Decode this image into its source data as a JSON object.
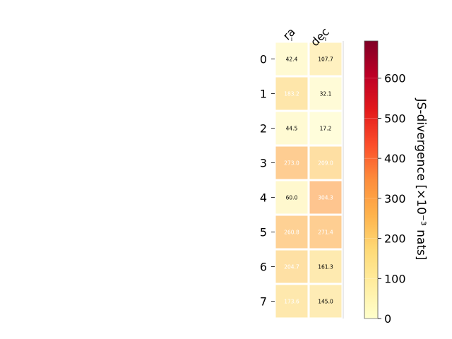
{
  "chart_data": {
    "type": "heatmap",
    "columns": [
      "ra",
      "dec"
    ],
    "rows": [
      "0",
      "1",
      "2",
      "3",
      "4",
      "5",
      "6",
      "7"
    ],
    "values": [
      [
        42.4,
        107.7
      ],
      [
        183.2,
        32.1
      ],
      [
        44.5,
        17.2
      ],
      [
        273.0,
        209.0
      ],
      [
        60.0,
        304.3
      ],
      [
        260.8,
        271.4
      ],
      [
        204.7,
        161.3
      ],
      [
        173.6,
        145.0
      ]
    ],
    "cell_labels": [
      [
        "42.4",
        "107.7"
      ],
      [
        "183.2",
        "32.1"
      ],
      [
        "44.5",
        "17.2"
      ],
      [
        "273.0",
        "209.0"
      ],
      [
        "60.0",
        "304.3"
      ],
      [
        "260.8",
        "271.4"
      ],
      [
        "204.7",
        "161.3"
      ],
      [
        "173.6",
        "145.0"
      ]
    ],
    "colormap": "YlOrRd",
    "colorbar": {
      "label": "JS-divergence [×10⁻³ nats]",
      "range": [
        0,
        693
      ],
      "ticks": [
        0,
        100,
        200,
        300,
        400,
        500,
        600
      ],
      "tick_labels": [
        "0",
        "100",
        "200",
        "300",
        "400",
        "500",
        "600"
      ]
    },
    "legend": "none",
    "grid": false
  }
}
